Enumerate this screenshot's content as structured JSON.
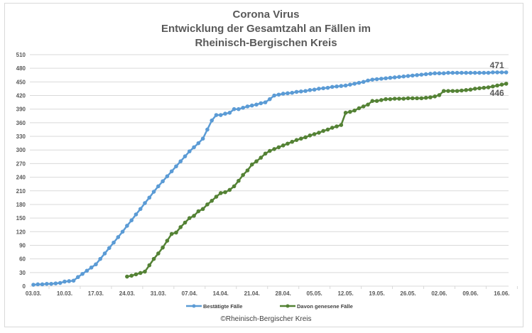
{
  "chart_data": {
    "type": "line",
    "title": [
      "Corona Virus",
      "Entwicklung der Gesamtzahl an Fällen im",
      "Rheinisch-Bergischen Kreis"
    ],
    "xlabel": "",
    "ylabel": "",
    "ylim": [
      0,
      510
    ],
    "yticks": [
      0,
      30,
      60,
      90,
      120,
      150,
      180,
      210,
      240,
      270,
      300,
      330,
      360,
      390,
      420,
      450,
      480,
      510
    ],
    "x_start": "03.03.",
    "x_days": 107,
    "xticks": [
      "03.03.",
      "10.03.",
      "17.03.",
      "24.03.",
      "31.03.",
      "07.04.",
      "14.04.",
      "21.04.",
      "28.04.",
      "05.05.",
      "12.05.",
      "19.05.",
      "26.05.",
      "02.06.",
      "09.06.",
      "16.06."
    ],
    "grid": true,
    "legend_position": "bottom",
    "series": [
      {
        "name": "Bestätigte Fälle",
        "color": "#5b9bd5",
        "start_day": 0,
        "end_label": "471",
        "values": [
          3,
          4,
          4,
          5,
          5,
          6,
          7,
          10,
          11,
          12,
          20,
          27,
          34,
          41,
          48,
          60,
          72,
          84,
          96,
          108,
          120,
          133,
          145,
          158,
          170,
          183,
          195,
          208,
          220,
          231,
          242,
          253,
          264,
          275,
          286,
          297,
          306,
          315,
          325,
          345,
          365,
          377,
          377,
          380,
          382,
          390,
          390,
          393,
          396,
          398,
          400,
          403,
          405,
          412,
          420,
          422,
          424,
          425,
          426,
          428,
          429,
          430,
          432,
          433,
          435,
          436,
          437,
          439,
          440,
          441,
          442,
          444,
          446,
          448,
          450,
          453,
          455,
          456,
          457,
          458,
          459,
          460,
          461,
          462,
          463,
          464,
          465,
          466,
          467,
          468,
          469,
          469,
          469,
          470,
          470,
          470,
          470,
          470,
          470,
          470,
          470,
          470,
          470,
          471,
          471,
          471,
          471
        ]
      },
      {
        "name": "Davon genesene Fälle",
        "color": "#548235",
        "start_day": 21,
        "end_label": "446",
        "values": [
          21,
          23,
          26,
          29,
          32,
          46,
          60,
          72,
          85,
          100,
          115,
          118,
          130,
          140,
          150,
          155,
          165,
          170,
          180,
          188,
          197,
          205,
          207,
          212,
          220,
          232,
          245,
          255,
          268,
          275,
          283,
          292,
          298,
          302,
          306,
          310,
          314,
          318,
          322,
          325,
          328,
          332,
          335,
          338,
          342,
          345,
          349,
          352,
          355,
          382,
          384,
          387,
          392,
          396,
          400,
          408,
          408,
          410,
          412,
          412,
          413,
          413,
          413,
          414,
          414,
          414,
          414,
          415,
          416,
          418,
          421,
          430,
          430,
          430,
          430,
          431,
          432,
          433,
          435,
          436,
          437,
          438,
          440,
          442,
          444,
          446
        ]
      }
    ]
  },
  "copyright": "©Rheinisch-Bergischer Kreis"
}
